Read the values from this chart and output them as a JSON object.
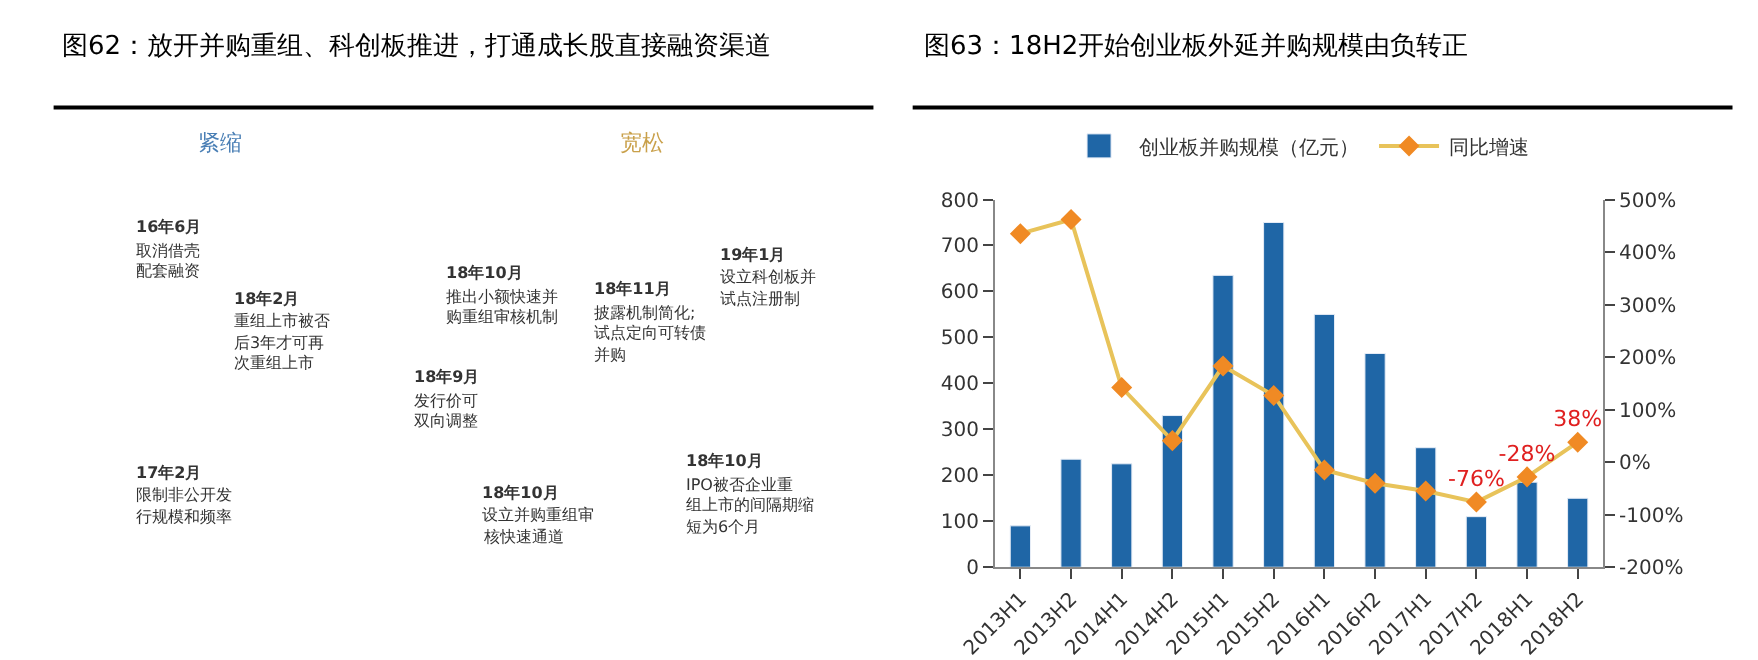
{
  "chart_data": [
    {
      "type": "other",
      "title": "图62：放开并购重组、科创板推进，打通成长股直接融资渠道",
      "annotations": [
        "紧缩",
        "宽松",
        "16年6月",
        "取消借壳配套融资",
        "18年2月",
        "重组上市被否后3年才可再次重组上市",
        "17年2月",
        "限制非公开发行规模和频率",
        "18年9月",
        "发行价可双向调整",
        "18年10月",
        "推出小额快速并购重组审核机制",
        "18年10月",
        "设立并购重组审核快速通道",
        "18年11月",
        "披露机制简化;试点定向可转债并购",
        "19年1月",
        "设立科创板并试点注册制",
        "18年10月",
        "IPO被否企业重组上市的间隔期缩短为6个月"
      ]
    },
    {
      "type": "bar",
      "title": "图63：18H2开始创业板外延并购规模由负转正",
      "categories": [
        "2013H1",
        "2013H2",
        "2014H1",
        "2014H2",
        "2015H1",
        "2015H2",
        "2016H1",
        "2016H2",
        "2017H1",
        "2017H2",
        "2018H1",
        "2018H2"
      ],
      "series": [
        {
          "name": "创业板并购规模（亿元）",
          "type": "bar",
          "color": "#1f66a6",
          "values": [
            90,
            235,
            225,
            330,
            635,
            750,
            550,
            465,
            260,
            110,
            185,
            150
          ]
        },
        {
          "name": "同比增速",
          "type": "line",
          "axis": "y2",
          "color": "#e8c35a",
          "marker": "diamond",
          "values": [
            435,
            462,
            142,
            41,
            183,
            127,
            -15,
            -40,
            -55,
            -76,
            -28,
            38
          ],
          "value_labels": [
            null,
            null,
            null,
            null,
            null,
            null,
            null,
            null,
            null,
            "-76%",
            "-28%",
            "38%"
          ]
        }
      ],
      "ylim": [
        0,
        800
      ],
      "yticks": [
        0,
        100,
        200,
        300,
        400,
        500,
        600,
        700,
        800
      ],
      "y2lim": [
        -200,
        500
      ],
      "y2ticks": [
        {
          "value": -200,
          "label": "-200%"
        },
        {
          "value": -100,
          "label": "-100%"
        },
        {
          "value": 0,
          "label": "0%"
        },
        {
          "value": 100,
          "label": "100%"
        },
        {
          "value": 200,
          "label": "200%"
        },
        {
          "value": 300,
          "label": "300%"
        },
        {
          "value": 400,
          "label": "400%"
        },
        {
          "value": 500,
          "label": "500%"
        }
      ],
      "legend": "top"
    }
  ]
}
